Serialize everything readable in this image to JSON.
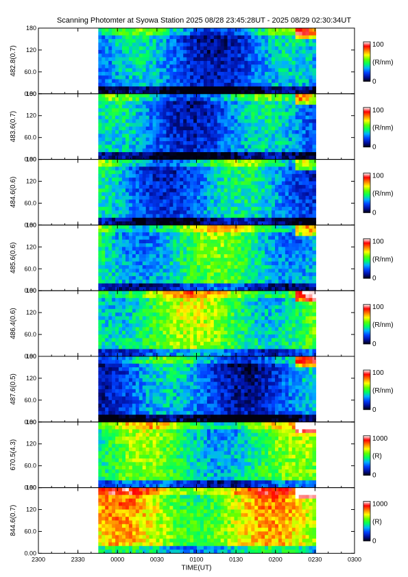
{
  "title": "Scanning Photomter at Syowa Station 2025 08/28 23:45:28UT - 2025 08/29 02:30:34UT",
  "colors": {
    "background": "#ffffff",
    "axis": "#000000",
    "colormap": [
      "#000010",
      "#0010a0",
      "#0040ff",
      "#00b0ff",
      "#00ff60",
      "#60ff00",
      "#ffff00",
      "#ff8000",
      "#ff0000",
      "#ffffff"
    ]
  },
  "chart_data": {
    "type": "heatmap",
    "xlabel": "TIME(UT)",
    "x_ticks": [
      "2300",
      "2330",
      "0000",
      "0030",
      "0100",
      "0130",
      "0200",
      "0230",
      "0300"
    ],
    "x_range_hours": [
      23.0,
      27.0
    ],
    "data_range_hours": [
      23.7578,
      26.5094
    ],
    "y_ticks": [
      "0.00",
      "60.0",
      "120",
      "180"
    ],
    "y_range": [
      0,
      180
    ],
    "panels": [
      {
        "ylabel": "482.8(0.7)",
        "colorbar": {
          "min": "0",
          "max": "100",
          "unit": "(R/nm)"
        },
        "level": 0.25
      },
      {
        "ylabel": "483.6(0.7)",
        "colorbar": {
          "min": "0",
          "max": "100",
          "unit": "(R/nm)"
        },
        "level": 0.27
      },
      {
        "ylabel": "484.6(0.6)",
        "colorbar": {
          "min": "0",
          "max": "100",
          "unit": "(R/nm)"
        },
        "level": 0.3
      },
      {
        "ylabel": "485.6(0.6)",
        "colorbar": {
          "min": "0",
          "max": "100",
          "unit": "(R/nm)"
        },
        "level": 0.42
      },
      {
        "ylabel": "486.4(0.6)",
        "colorbar": {
          "min": "0",
          "max": "100",
          "unit": "(R/nm)"
        },
        "level": 0.5
      },
      {
        "ylabel": "487.6(0.5)",
        "colorbar": {
          "min": "0",
          "max": "100",
          "unit": "(R/nm)"
        },
        "level": 0.24
      },
      {
        "ylabel": "670.5(4.3)",
        "colorbar": {
          "min": "0",
          "max": "1000",
          "unit": "(R)"
        },
        "level": 0.45
      },
      {
        "ylabel": "844.6(0.7)",
        "colorbar": {
          "min": "0",
          "max": "1000",
          "unit": "(R)"
        },
        "level": 0.62
      }
    ]
  }
}
